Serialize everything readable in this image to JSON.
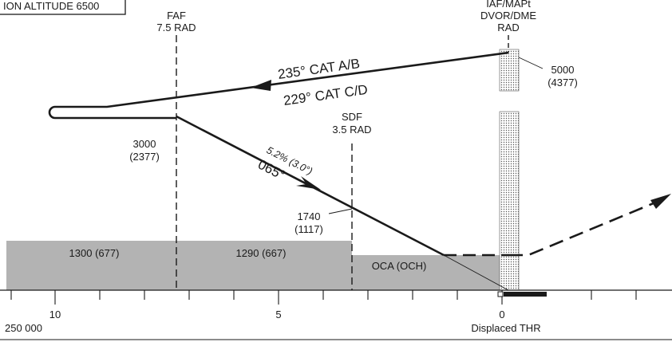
{
  "header": {
    "transition_altitude": "ION ALTITUDE 6500"
  },
  "fixes": {
    "faf": {
      "name": "FAF",
      "radial": "7.5 RAD"
    },
    "sdf": {
      "name": "SDF",
      "radial": "3.5 RAD"
    },
    "iaf": {
      "line1": "IAF/MAPt",
      "line2": "DVOR/DME",
      "line3": "RAD"
    }
  },
  "altitudes": {
    "iaf_alt": "5000",
    "iaf_height": "(4377)",
    "faf_alt": "3000",
    "faf_height": "(2377)",
    "sdf_alt": "1740",
    "sdf_height": "(1117)"
  },
  "procedure": {
    "outbound_track_ab": "235° CAT A/B",
    "outbound_track_cd": "229° CAT C/D",
    "gradient": "5.2% (3.0°)",
    "final_track": "065°"
  },
  "obstacle": {
    "segment1": "1300 (677)",
    "segment2": "1290 (667)",
    "segment3": "OCA (OCH)"
  },
  "distance_scale": {
    "tick_10": "10",
    "tick_5": "5",
    "tick_0": "0",
    "scale_note": "250 000",
    "threshold": "Displaced THR"
  },
  "colors": {
    "ink": "#1a1a1a",
    "obstacle_fill": "#b3b3b3",
    "stipple": "#666666"
  }
}
